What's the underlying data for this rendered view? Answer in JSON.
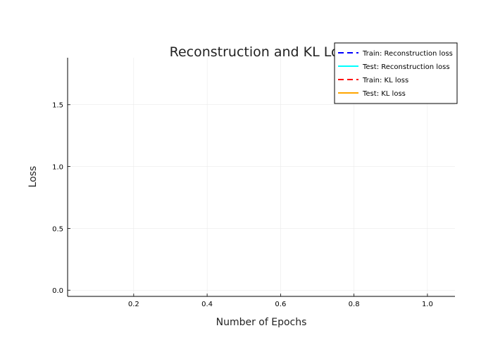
{
  "chart_data": {
    "type": "line",
    "title": "Reconstruction and KL Loss",
    "xlabel": "Number of Epochs",
    "ylabel": "Loss",
    "xlim": [
      0.02,
      1.075
    ],
    "ylim": [
      -0.05,
      1.88
    ],
    "xticks": [
      0.2,
      0.4,
      0.6,
      0.8,
      1.0
    ],
    "xtick_labels": [
      "0.2",
      "0.4",
      "0.6",
      "0.8",
      "1.0"
    ],
    "yticks": [
      0.0,
      0.5,
      1.0,
      1.5
    ],
    "ytick_labels": [
      "0.0",
      "0.5",
      "1.0",
      "1.5"
    ],
    "grid": true,
    "legend_position": "top-right",
    "series": [
      {
        "name": "Train: Reconstruction loss",
        "color": "#0000ff",
        "dash": "dashed",
        "x": [],
        "values": []
      },
      {
        "name": "Test: Reconstruction loss",
        "color": "#00ffff",
        "dash": "solid",
        "x": [],
        "values": []
      },
      {
        "name": "Train: KL loss",
        "color": "#ff0000",
        "dash": "dashed",
        "x": [],
        "values": []
      },
      {
        "name": "Test: KL loss",
        "color": "#ffa500",
        "dash": "solid",
        "x": [],
        "values": []
      }
    ]
  }
}
